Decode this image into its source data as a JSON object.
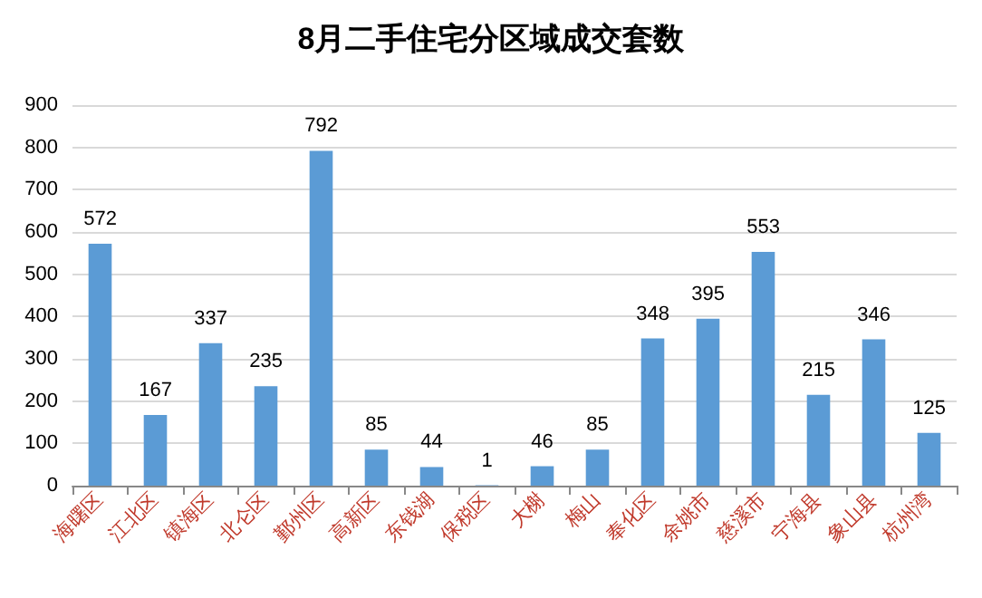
{
  "chart_data": {
    "type": "bar",
    "title": "8月二手住宅分区域成交套数",
    "categories": [
      "海曙区",
      "江北区",
      "镇海区",
      "北仑区",
      "鄞州区",
      "高新区",
      "东钱湖",
      "保税区",
      "大榭",
      "梅山",
      "奉化区",
      "余姚市",
      "慈溪市",
      "宁海县",
      "象山县",
      "杭州湾"
    ],
    "values": [
      572,
      167,
      337,
      235,
      792,
      85,
      44,
      1,
      46,
      85,
      348,
      395,
      553,
      215,
      346,
      125
    ],
    "color": "#5b9bd5",
    "ylim": [
      0,
      900
    ],
    "yticks": [
      0,
      100,
      200,
      300,
      400,
      500,
      600,
      700,
      800,
      900
    ],
    "grid": "y",
    "data_labels": true
  }
}
